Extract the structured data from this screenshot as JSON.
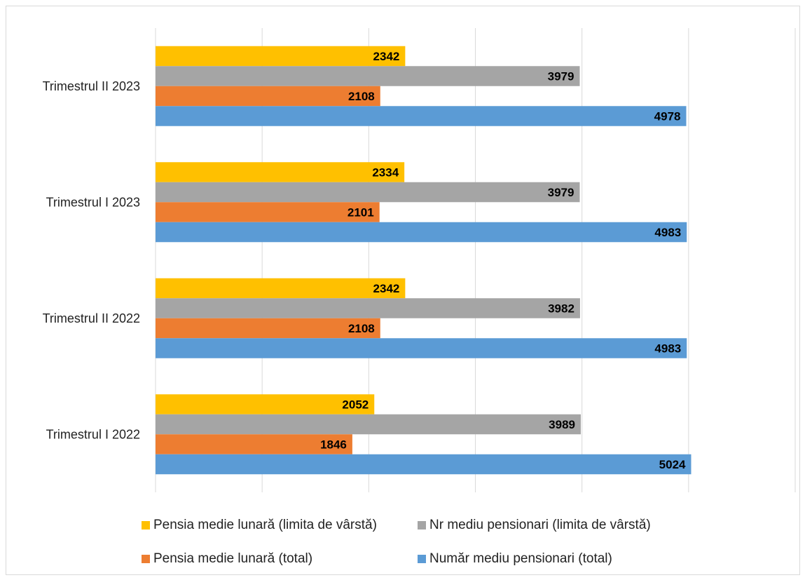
{
  "chart_data": {
    "type": "bar",
    "orientation": "horizontal",
    "categories": [
      "Trimestrul I 2022",
      "Trimestrul II 2022",
      "Trimestrul I 2023",
      "Trimestrul II 2023"
    ],
    "series": [
      {
        "name": "Număr mediu pensionari (total)",
        "color": "#5b9bd5",
        "values": [
          5024,
          4983,
          4983,
          4978
        ]
      },
      {
        "name": "Pensia medie lunară (total)",
        "color": "#ed7d31",
        "values": [
          1846,
          2108,
          2101,
          2108
        ]
      },
      {
        "name": "Nr mediu pensionari (limita de vârstă)",
        "color": "#a5a5a5",
        "values": [
          3989,
          3982,
          3979,
          3979
        ]
      },
      {
        "name": "Pensia medie lunară (limita de vârstă)",
        "color": "#ffc000",
        "values": [
          2052,
          2342,
          2334,
          2342
        ]
      }
    ],
    "xlim": [
      0,
      6000
    ],
    "grid": true,
    "tick_labels_shown": false,
    "legend_position": "bottom",
    "data_labels": true
  }
}
